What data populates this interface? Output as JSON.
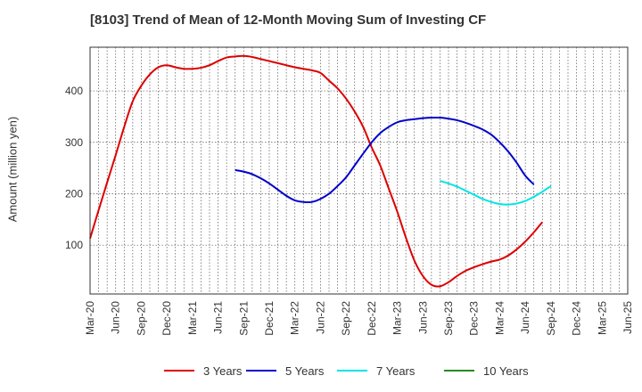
{
  "chart_data": {
    "type": "line",
    "title": "[8103]  Trend of Mean of 12-Month Moving Sum of Investing CF",
    "xlabel": "",
    "ylabel": "Amount (million yen)",
    "x_ticks": [
      "Mar-20",
      "Jun-20",
      "Sep-20",
      "Dec-20",
      "Mar-21",
      "Jun-21",
      "Sep-21",
      "Dec-21",
      "Mar-22",
      "Jun-22",
      "Sep-22",
      "Dec-22",
      "Mar-23",
      "Jun-23",
      "Sep-23",
      "Dec-23",
      "Mar-24",
      "Jun-24",
      "Sep-24",
      "Dec-24",
      "Mar-25",
      "Jun-25"
    ],
    "xlim": [
      "Mar-20",
      "Jun-25"
    ],
    "y_ticks": [
      100,
      200,
      300,
      400
    ],
    "ylim": [
      5,
      485
    ],
    "grid": true,
    "legend_position": "bottom",
    "series": [
      {
        "name": "3 Years",
        "color": "#dd0000",
        "points": [
          [
            "Mar-20",
            113
          ],
          [
            "Apr-20",
            168
          ],
          [
            "May-20",
            222
          ],
          [
            "Jun-20",
            275
          ],
          [
            "Jul-20",
            330
          ],
          [
            "Aug-20",
            380
          ],
          [
            "Sep-20",
            410
          ],
          [
            "Oct-20",
            432
          ],
          [
            "Nov-20",
            446
          ],
          [
            "Dec-20",
            450
          ],
          [
            "Jan-21",
            446
          ],
          [
            "Feb-21",
            443
          ],
          [
            "Mar-21",
            443
          ],
          [
            "Apr-21",
            445
          ],
          [
            "May-21",
            450
          ],
          [
            "Jun-21",
            458
          ],
          [
            "Jul-21",
            465
          ],
          [
            "Aug-21",
            467
          ],
          [
            "Sep-21",
            468
          ],
          [
            "Oct-21",
            466
          ],
          [
            "Nov-21",
            462
          ],
          [
            "Dec-21",
            458
          ],
          [
            "Jan-22",
            454
          ],
          [
            "Feb-22",
            450
          ],
          [
            "Mar-22",
            446
          ],
          [
            "Apr-22",
            443
          ],
          [
            "May-22",
            440
          ],
          [
            "Jun-22",
            435
          ],
          [
            "Jul-22",
            420
          ],
          [
            "Aug-22",
            405
          ],
          [
            "Sep-22",
            385
          ],
          [
            "Oct-22",
            360
          ],
          [
            "Nov-22",
            330
          ],
          [
            "Dec-22",
            290
          ],
          [
            "Jan-23",
            255
          ],
          [
            "Feb-23",
            210
          ],
          [
            "Mar-23",
            165
          ],
          [
            "Apr-23",
            115
          ],
          [
            "May-23",
            70
          ],
          [
            "Jun-23",
            40
          ],
          [
            "Jul-23",
            23
          ],
          [
            "Aug-23",
            20
          ],
          [
            "Sep-23",
            28
          ],
          [
            "Oct-23",
            40
          ],
          [
            "Nov-23",
            50
          ],
          [
            "Dec-23",
            57
          ],
          [
            "Jan-24",
            63
          ],
          [
            "Feb-24",
            68
          ],
          [
            "Mar-24",
            72
          ],
          [
            "Apr-24",
            80
          ],
          [
            "May-24",
            92
          ],
          [
            "Jun-24",
            107
          ],
          [
            "Jul-24",
            125
          ],
          [
            "Aug-24",
            145
          ]
        ]
      },
      {
        "name": "5 Years",
        "color": "#0000cc",
        "points": [
          [
            "Aug-21",
            246
          ],
          [
            "Sep-21",
            243
          ],
          [
            "Oct-21",
            238
          ],
          [
            "Nov-21",
            230
          ],
          [
            "Dec-21",
            220
          ],
          [
            "Jan-22",
            208
          ],
          [
            "Feb-22",
            196
          ],
          [
            "Mar-22",
            187
          ],
          [
            "Apr-22",
            184
          ],
          [
            "May-22",
            184
          ],
          [
            "Jun-22",
            190
          ],
          [
            "Jul-22",
            200
          ],
          [
            "Aug-22",
            215
          ],
          [
            "Sep-22",
            232
          ],
          [
            "Oct-22",
            255
          ],
          [
            "Nov-22",
            278
          ],
          [
            "Dec-22",
            300
          ],
          [
            "Jan-23",
            318
          ],
          [
            "Feb-23",
            330
          ],
          [
            "Mar-23",
            339
          ],
          [
            "Apr-23",
            343
          ],
          [
            "May-23",
            345
          ],
          [
            "Jun-23",
            347
          ],
          [
            "Jul-23",
            348
          ],
          [
            "Aug-23",
            348
          ],
          [
            "Sep-23",
            346
          ],
          [
            "Oct-23",
            343
          ],
          [
            "Nov-23",
            338
          ],
          [
            "Dec-23",
            332
          ],
          [
            "Jan-24",
            325
          ],
          [
            "Feb-24",
            315
          ],
          [
            "Mar-24",
            300
          ],
          [
            "Apr-24",
            282
          ],
          [
            "May-24",
            260
          ],
          [
            "Jun-24",
            235
          ],
          [
            "Jul-24",
            218
          ]
        ]
      },
      {
        "name": "7 Years",
        "color": "#00e5e5",
        "points": [
          [
            "Aug-23",
            225
          ],
          [
            "Sep-23",
            220
          ],
          [
            "Oct-23",
            214
          ],
          [
            "Nov-23",
            206
          ],
          [
            "Dec-23",
            198
          ],
          [
            "Jan-24",
            190
          ],
          [
            "Feb-24",
            184
          ],
          [
            "Mar-24",
            180
          ],
          [
            "Apr-24",
            179
          ],
          [
            "May-24",
            181
          ],
          [
            "Jun-24",
            186
          ],
          [
            "Jul-24",
            194
          ],
          [
            "Aug-24",
            204
          ],
          [
            "Sep-24",
            215
          ]
        ]
      },
      {
        "name": "10 Years",
        "color": "#228b22",
        "points": []
      }
    ]
  }
}
